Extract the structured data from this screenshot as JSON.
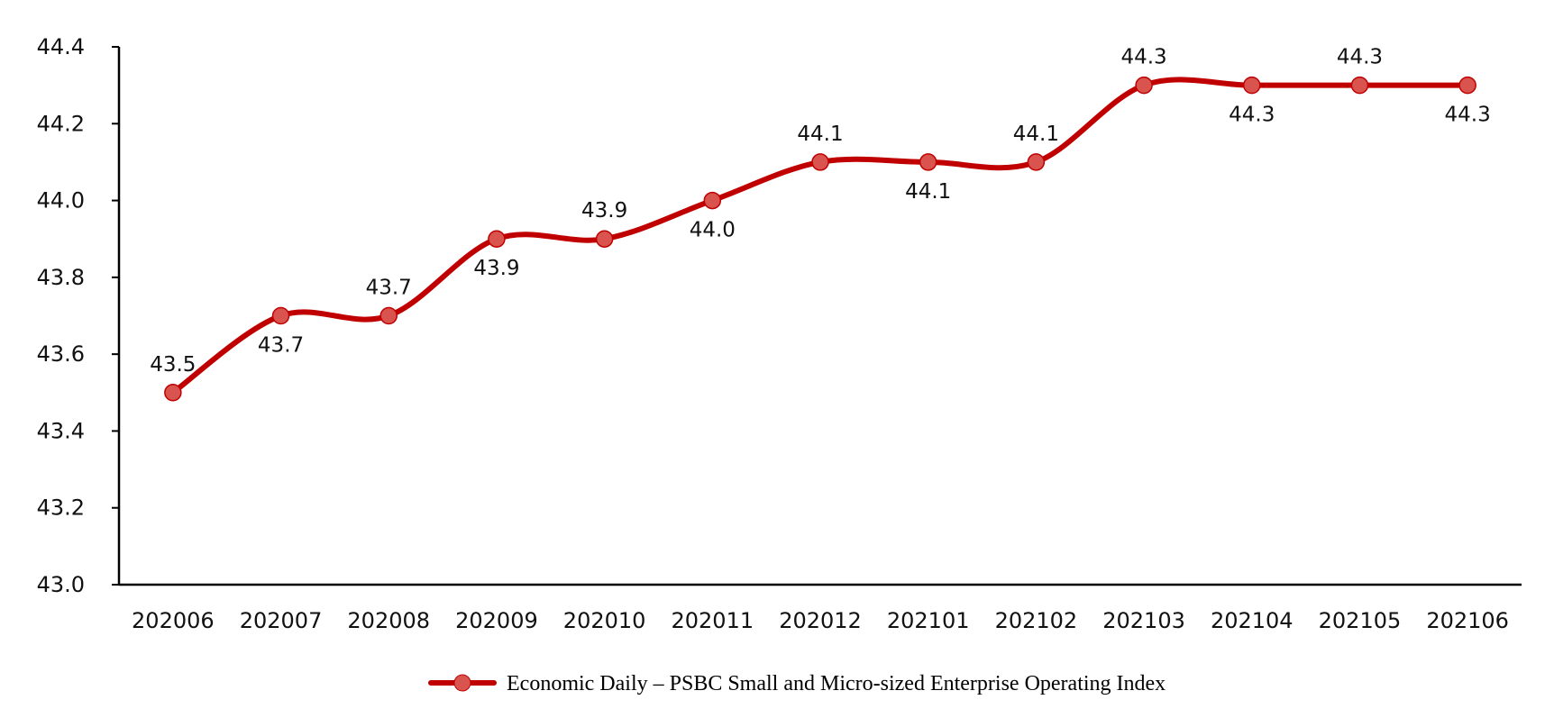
{
  "chart_data": {
    "type": "line",
    "categories": [
      "202006",
      "202007",
      "202008",
      "202009",
      "202010",
      "202011",
      "202012",
      "202101",
      "202102",
      "202103",
      "202104",
      "202105",
      "202106"
    ],
    "series": [
      {
        "name": "Economic Daily – PSBC Small and Micro-sized Enterprise Operating Index",
        "values": [
          43.5,
          43.7,
          43.7,
          43.9,
          43.9,
          44.0,
          44.1,
          44.1,
          44.1,
          44.3,
          44.3,
          44.3,
          44.3
        ],
        "data_labels": [
          "43.5",
          "43.7",
          "43.7",
          "43.9",
          "43.9",
          "44.0",
          "44.1",
          "44.1",
          "44.1",
          "44.3",
          "44.3",
          "44.3",
          "44.3"
        ],
        "label_positions": [
          "above",
          "below",
          "above",
          "below",
          "above",
          "below",
          "above",
          "below",
          "above",
          "above",
          "below",
          "above",
          "below"
        ],
        "color": "#c00000",
        "marker_color": "#d9534f",
        "smooth": true
      }
    ],
    "title": "",
    "xlabel": "",
    "ylabel": "",
    "ylim": [
      43.0,
      44.4
    ],
    "yticks": [
      "43.0",
      "43.2",
      "43.4",
      "43.6",
      "43.8",
      "44.0",
      "44.2",
      "44.4"
    ],
    "grid": false,
    "legend_position": "bottom"
  }
}
